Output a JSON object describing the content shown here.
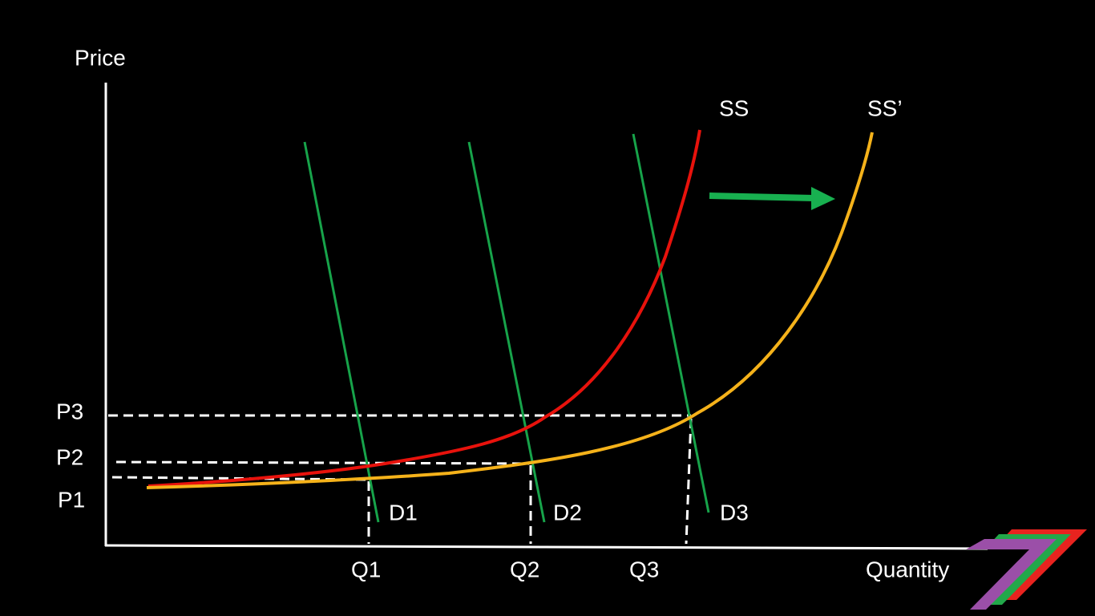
{
  "axes": {
    "y_label": "Price",
    "x_label": "Quantity"
  },
  "supply_curves": [
    {
      "label": "SS"
    },
    {
      "label": "SS’"
    }
  ],
  "demand_curves": [
    {
      "label": "D1"
    },
    {
      "label": "D2"
    },
    {
      "label": "D3"
    }
  ],
  "price_levels": [
    "P1",
    "P2",
    "P3"
  ],
  "quantity_levels": [
    "Q1",
    "Q2",
    "Q3"
  ]
}
